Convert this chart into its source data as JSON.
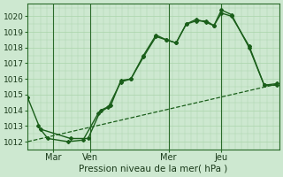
{
  "xlabel": "Pression niveau de la mer( hPa )",
  "bg_color": "#cde8d0",
  "grid_color": "#aad4aa",
  "line_color": "#1a5e1a",
  "ylim": [
    1011.5,
    1020.8
  ],
  "xlim": [
    0,
    100
  ],
  "xtick_positions": [
    10,
    25,
    56,
    77
  ],
  "xtick_labels": [
    "Mar",
    "Ven",
    "Mer",
    "Jeu"
  ],
  "vlines": [
    10,
    25,
    56,
    77
  ],
  "ytick_positions": [
    1012,
    1013,
    1014,
    1015,
    1016,
    1017,
    1018,
    1019,
    1020
  ],
  "series1_x": [
    0,
    5,
    17,
    24,
    29,
    33,
    37,
    41,
    46,
    51,
    55,
    59,
    63,
    67,
    71,
    74,
    77,
    81,
    88,
    94,
    99
  ],
  "series1_y": [
    1014.8,
    1012.8,
    1012.2,
    1012.2,
    1014.0,
    1014.3,
    1015.9,
    1016.0,
    1017.4,
    1018.7,
    1018.5,
    1018.3,
    1019.5,
    1019.8,
    1019.6,
    1019.4,
    1020.4,
    1020.1,
    1018.0,
    1015.6,
    1015.7
  ],
  "series2_x": [
    4,
    8,
    16,
    22,
    28,
    32,
    37,
    41,
    46,
    51,
    55,
    59,
    63,
    67,
    71,
    74,
    77,
    81,
    88,
    94,
    99
  ],
  "series2_y": [
    1013.0,
    1012.2,
    1012.0,
    1012.1,
    1013.8,
    1014.2,
    1015.8,
    1016.0,
    1017.5,
    1018.8,
    1018.5,
    1018.3,
    1019.5,
    1019.7,
    1019.7,
    1019.4,
    1020.2,
    1020.0,
    1018.1,
    1015.6,
    1015.6
  ],
  "series3_x": [
    0,
    100
  ],
  "series3_y": [
    1012.0,
    1015.7
  ]
}
